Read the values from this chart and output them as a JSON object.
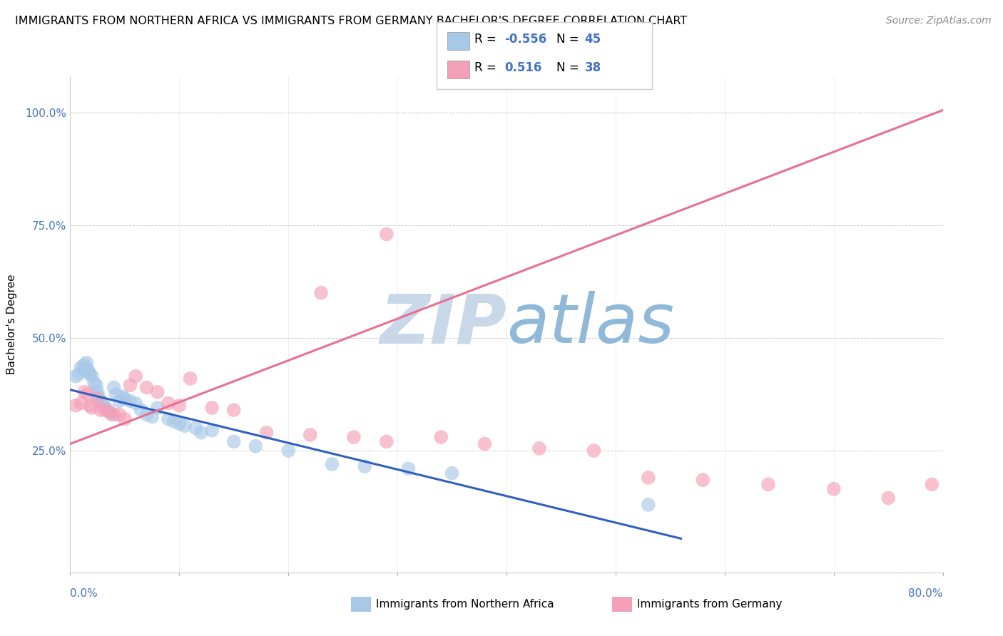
{
  "title": "IMMIGRANTS FROM NORTHERN AFRICA VS IMMIGRANTS FROM GERMANY BACHELOR'S DEGREE CORRELATION CHART",
  "source": "Source: ZipAtlas.com",
  "ylabel": "Bachelor's Degree",
  "scatter1_color": "#a8c8e8",
  "scatter2_color": "#f4a0b8",
  "line1_color": "#3060c0",
  "line2_color": "#e87090",
  "watermark_zip": "ZIP",
  "watermark_atlas": "atlas",
  "watermark_zip_color": "#c8d8e8",
  "watermark_atlas_color": "#90b8d8",
  "xlim": [
    0.0,
    0.8
  ],
  "ylim": [
    -0.02,
    1.08
  ],
  "blue_scatter_x": [
    0.005,
    0.008,
    0.01,
    0.012,
    0.013,
    0.015,
    0.016,
    0.017,
    0.018,
    0.02,
    0.022,
    0.024,
    0.025,
    0.026,
    0.028,
    0.03,
    0.032,
    0.035,
    0.038,
    0.04,
    0.042,
    0.045,
    0.048,
    0.05,
    0.055,
    0.06,
    0.065,
    0.07,
    0.075,
    0.08,
    0.09,
    0.095,
    0.1,
    0.105,
    0.115,
    0.12,
    0.13,
    0.15,
    0.17,
    0.2,
    0.24,
    0.27,
    0.31,
    0.35,
    0.53
  ],
  "blue_scatter_y": [
    0.415,
    0.42,
    0.435,
    0.43,
    0.44,
    0.445,
    0.43,
    0.425,
    0.42,
    0.415,
    0.4,
    0.395,
    0.38,
    0.37,
    0.36,
    0.355,
    0.345,
    0.34,
    0.33,
    0.39,
    0.375,
    0.36,
    0.37,
    0.365,
    0.36,
    0.355,
    0.34,
    0.33,
    0.325,
    0.345,
    0.32,
    0.315,
    0.31,
    0.305,
    0.3,
    0.29,
    0.295,
    0.27,
    0.26,
    0.25,
    0.22,
    0.215,
    0.21,
    0.2,
    0.13
  ],
  "pink_scatter_x": [
    0.005,
    0.01,
    0.013,
    0.016,
    0.018,
    0.02,
    0.025,
    0.028,
    0.032,
    0.036,
    0.04,
    0.045,
    0.05,
    0.055,
    0.06,
    0.07,
    0.08,
    0.09,
    0.1,
    0.11,
    0.13,
    0.15,
    0.18,
    0.22,
    0.26,
    0.29,
    0.34,
    0.38,
    0.43,
    0.48,
    0.53,
    0.58,
    0.64,
    0.7,
    0.75,
    0.79,
    0.23,
    0.29
  ],
  "pink_scatter_y": [
    0.35,
    0.355,
    0.38,
    0.375,
    0.35,
    0.345,
    0.365,
    0.34,
    0.34,
    0.335,
    0.33,
    0.33,
    0.32,
    0.395,
    0.415,
    0.39,
    0.38,
    0.355,
    0.35,
    0.41,
    0.345,
    0.34,
    0.29,
    0.285,
    0.28,
    0.27,
    0.28,
    0.265,
    0.255,
    0.25,
    0.19,
    0.185,
    0.175,
    0.165,
    0.145,
    0.175,
    0.6,
    0.73
  ],
  "line1_x": [
    0.0,
    0.56
  ],
  "line1_y": [
    0.385,
    0.055
  ],
  "line2_x": [
    0.0,
    0.8
  ],
  "line2_y": [
    0.265,
    1.005
  ]
}
